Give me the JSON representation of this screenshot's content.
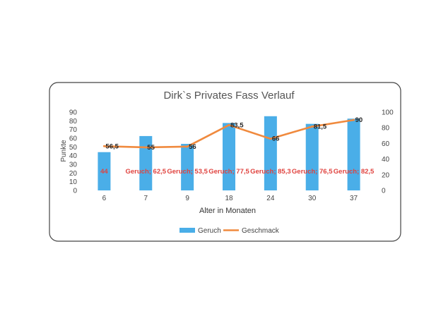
{
  "chart_data": {
    "type": "bar",
    "title": "Dirk`s Privates Fass Verlauf",
    "xlabel": "Alter in Monaten",
    "ylabel": "Punkte",
    "categories": [
      "6",
      "7",
      "9",
      "18",
      "24",
      "30",
      "37"
    ],
    "y_left": {
      "ylim": [
        0,
        90
      ],
      "ticks": [
        "0",
        "10",
        "20",
        "30",
        "40",
        "50",
        "60",
        "70",
        "80",
        "90"
      ]
    },
    "y_right": {
      "ylim": [
        0,
        100
      ],
      "ticks": [
        "0",
        "20",
        "40",
        "60",
        "80",
        "100"
      ]
    },
    "series": [
      {
        "name": "Geruch",
        "type": "bar",
        "axis": "left",
        "color": "#4aaee8",
        "values": [
          44,
          62.5,
          53.5,
          77.5,
          85.3,
          76.5,
          82.5
        ],
        "labels": [
          "44",
          "Geruch; 62,5",
          "Geruch; 53,5",
          "Geruch; 77,5",
          "Geruch; 85,3",
          "Geruch; 76,5",
          "Geruch; 82,5"
        ],
        "label_color": "#e0433f"
      },
      {
        "name": "Geschmack",
        "type": "line",
        "axis": "right",
        "color": "#f08a3e",
        "values": [
          56.5,
          55,
          56,
          83.5,
          66,
          81.5,
          90
        ],
        "labels": [
          "56,5",
          "55",
          "56",
          "83,5",
          "66",
          "81,5",
          "90"
        ],
        "label_color": "#222222"
      }
    ],
    "legend": {
      "position": "bottom",
      "entries": [
        "Geruch",
        "Geschmack"
      ]
    },
    "grid": false
  }
}
